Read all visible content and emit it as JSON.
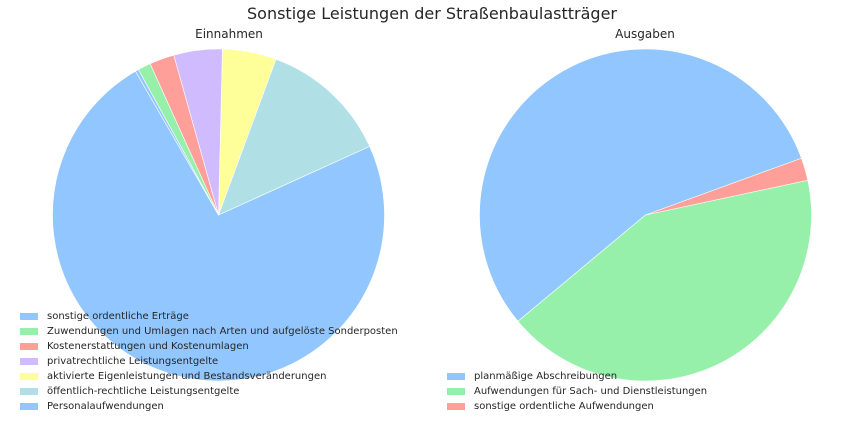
{
  "title": "Sonstige Leistungen der Straßenbaulastträger",
  "chart_data": [
    {
      "type": "pie",
      "title": "Einnahmen",
      "slices": [
        {
          "label": "Personalaufwendungen",
          "value": 70.0,
          "color": "#92c6ff"
        },
        {
          "label": "öffentlich-rechtliche Leistungsentgelte",
          "value": 12.0,
          "color": "#b0e0e6"
        },
        {
          "label": "aktivierte Eigenleistungen und Bestandsveränderungen",
          "value": 5.0,
          "color": "#ffff99"
        },
        {
          "label": "privatrechtliche Leistungsentgelte",
          "value": 4.5,
          "color": "#d0bbff"
        },
        {
          "label": "Kostenerstattungen und Kostenumlagen",
          "value": 2.3,
          "color": "#ff9f9a"
        },
        {
          "label": "Zuwendungen und Umlagen nach Arten und aufgelöste Sonderposten",
          "value": 1.2,
          "color": "#97f0aa"
        },
        {
          "label": "sonstige ordentliche Erträge",
          "value": 0.3,
          "color": "#92c6ff"
        }
      ],
      "start_angle_deg": 120,
      "direction": "counterclockwise",
      "legend_order": [
        "sonstige ordentliche Erträge",
        "Zuwendungen und Umlagen nach Arten und aufgelöste Sonderposten",
        "Kostenerstattungen und Kostenumlagen",
        "privatrechtliche Leistungsentgelte",
        "aktivierte Eigenleistungen und Bestandsveränderungen",
        "öffentlich-rechtliche Leistungsentgelte",
        "Personalaufwendungen"
      ],
      "legend_position": "lower-left"
    },
    {
      "type": "pie",
      "title": "Ausgaben",
      "slices": [
        {
          "label": "planmäßige Abschreibungen",
          "value": 55.5,
          "color": "#92c6ff"
        },
        {
          "label": "Aufwendungen für Sach- und Dienstleistungen",
          "value": 42.3,
          "color": "#97f0aa"
        },
        {
          "label": "sonstige ordentliche Aufwendungen",
          "value": 2.2,
          "color": "#ff9f9a"
        }
      ],
      "start_angle_deg": 20,
      "direction": "counterclockwise",
      "legend_order": [
        "planmäßige Abschreibungen",
        "Aufwendungen für Sach- und Dienstleistungen",
        "sonstige ordentliche Aufwendungen"
      ],
      "legend_position": "lower-left"
    }
  ]
}
